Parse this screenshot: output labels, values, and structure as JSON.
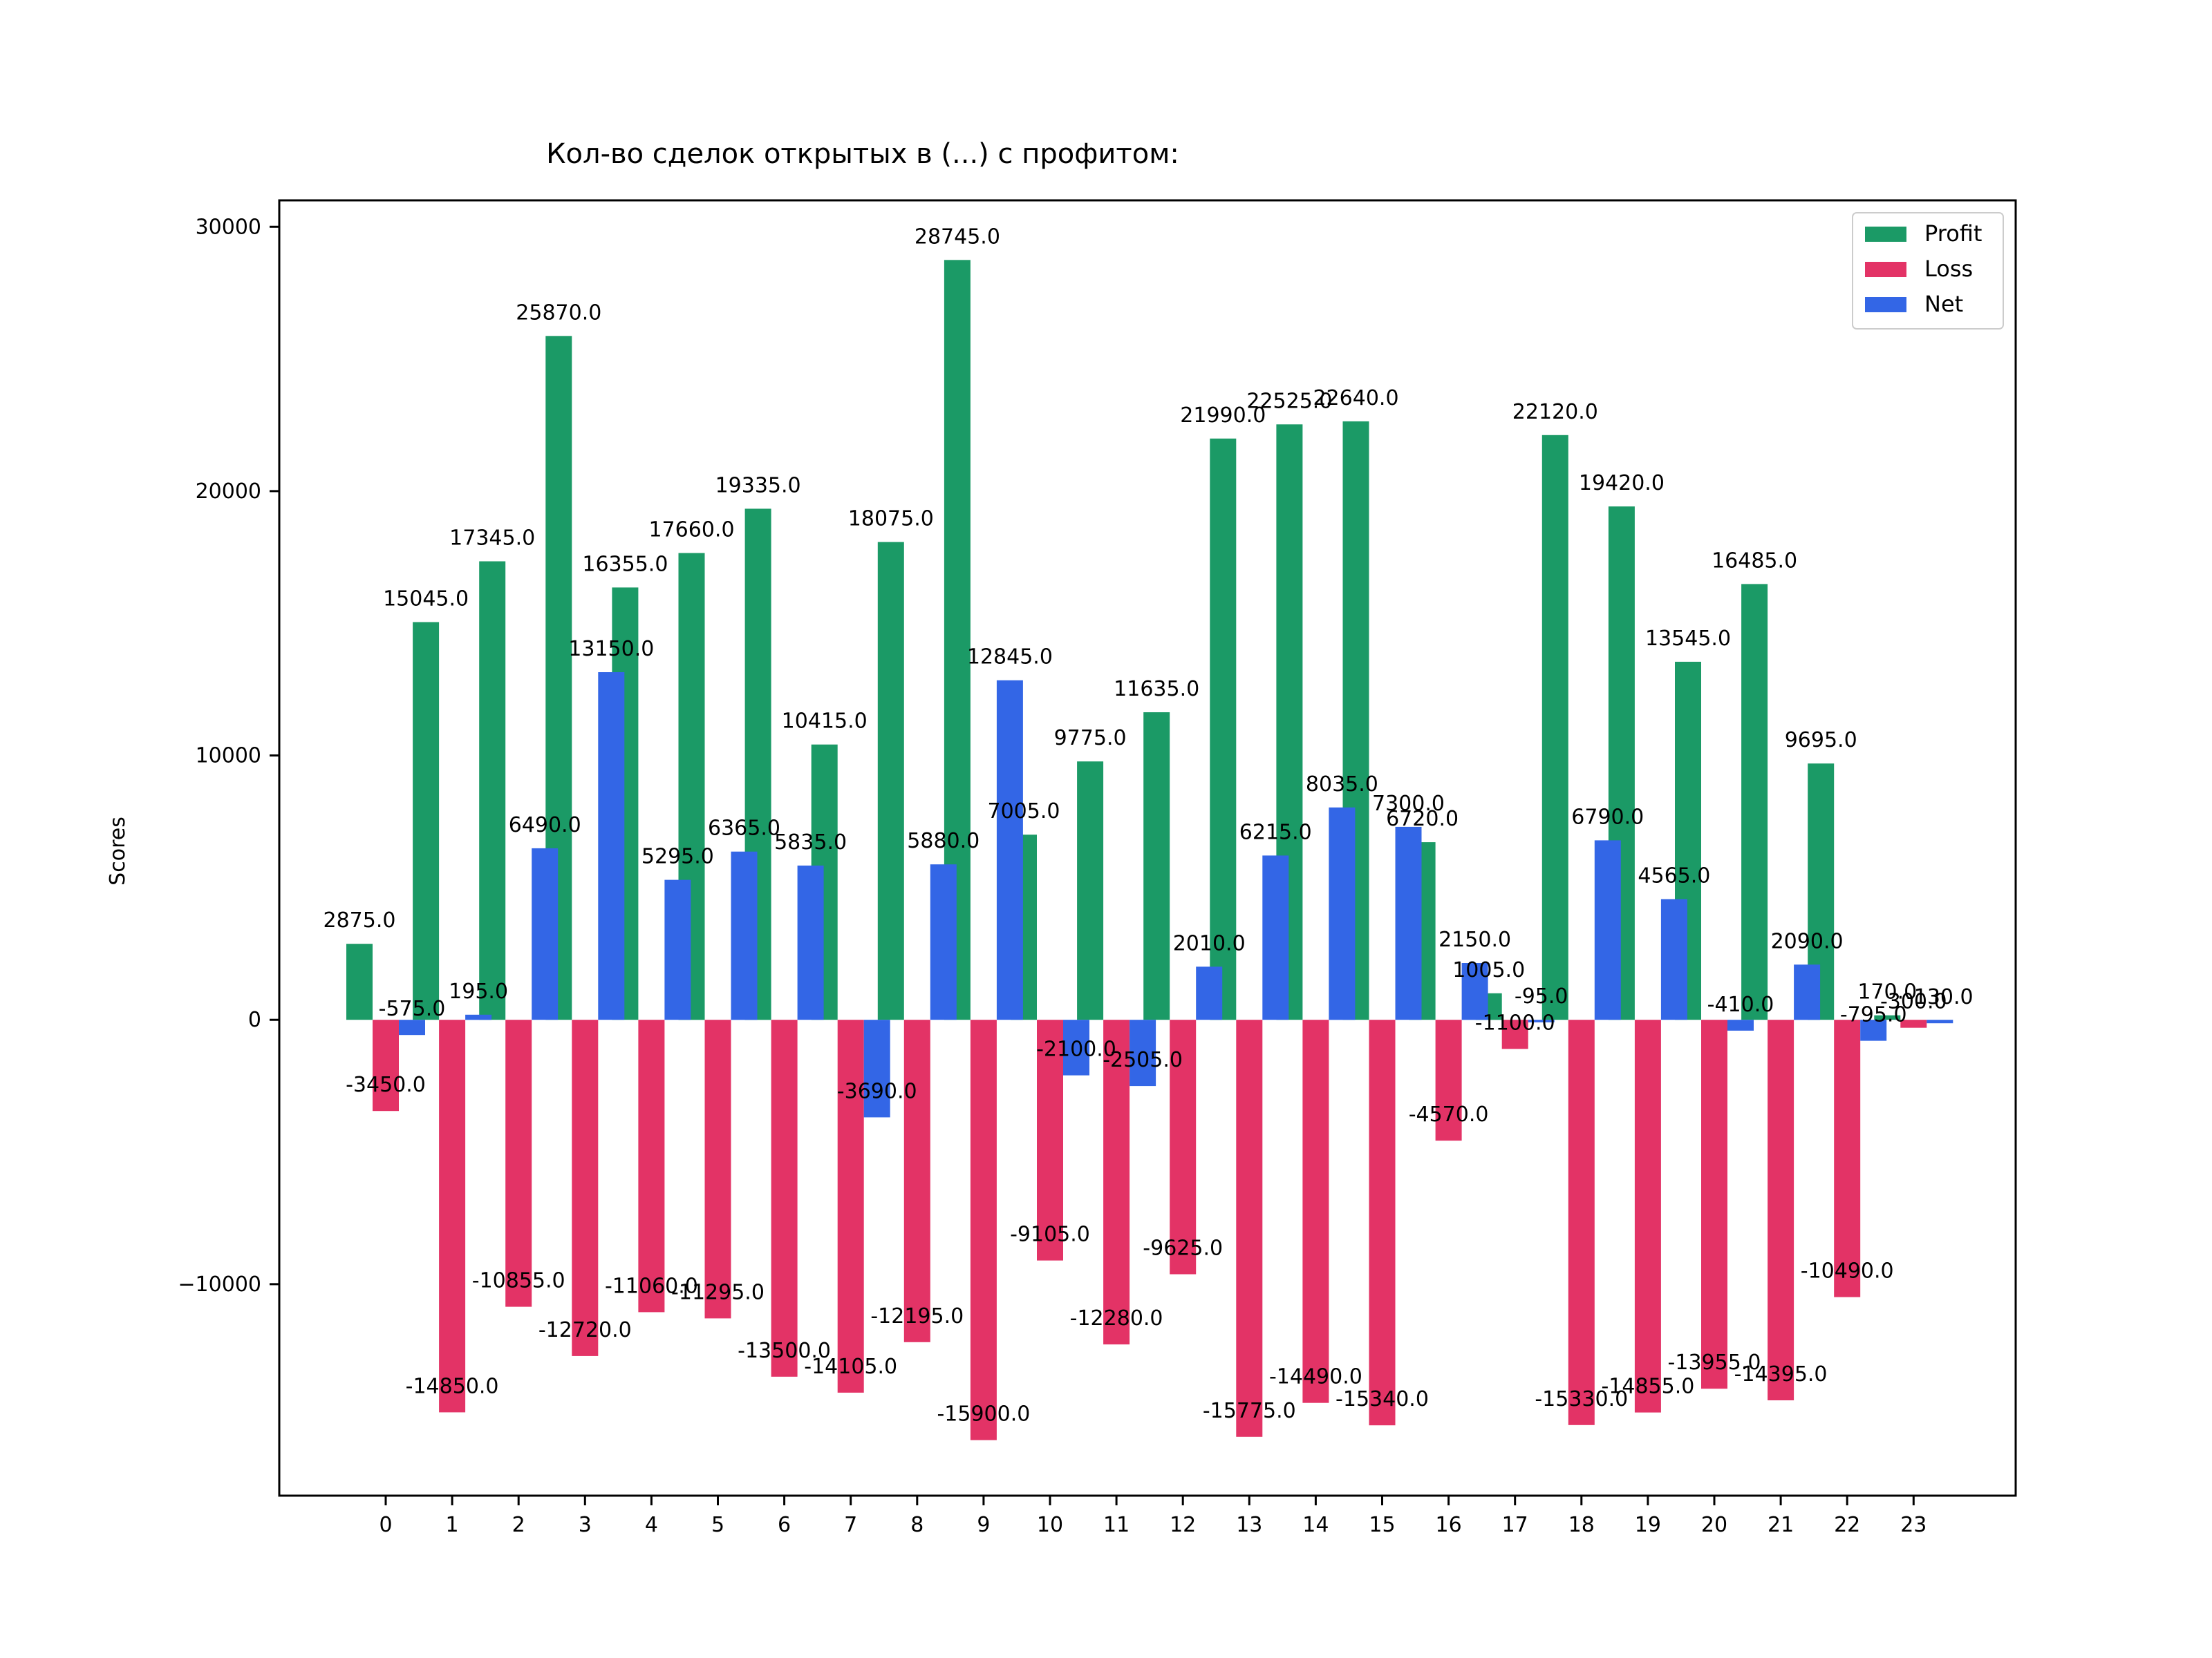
{
  "chart_data": {
    "type": "bar",
    "title": "Кол-во сделок открытых в (...) с профитом:",
    "xlabel": "",
    "ylabel": "Scores",
    "categories": [
      "0",
      "1",
      "2",
      "3",
      "4",
      "5",
      "6",
      "7",
      "8",
      "9",
      "10",
      "11",
      "12",
      "13",
      "14",
      "15",
      "16",
      "17",
      "18",
      "19",
      "20",
      "21",
      "22",
      "23"
    ],
    "ylim": [
      -18000,
      31000
    ],
    "yticks": [
      -10000,
      0,
      10000,
      20000,
      30000
    ],
    "yticks_labels": [
      "−10000",
      "0",
      "10000",
      "20000",
      "30000"
    ],
    "grid": false,
    "legend_position": "top-right",
    "series": [
      {
        "name": "Profit",
        "color": "#1b9a66",
        "values": [
          2875,
          15045,
          17345,
          25870,
          16355,
          17660,
          19335,
          10415,
          18075,
          28745,
          7005,
          9775,
          11635,
          21990,
          22525,
          22640,
          6720,
          1005,
          22120,
          19420,
          13545,
          16485,
          9695,
          170
        ],
        "labels": [
          "2875.0",
          "15045.0",
          "17345.0",
          "25870.0",
          "16355.0",
          "17660.0",
          "19335.0",
          "10415.0",
          "18075.0",
          "28745.0",
          "7005.0",
          "9775.0",
          "11635.0",
          "21990.0",
          "22525.0",
          "22640.0",
          "6720.0",
          "1005.0",
          "22120.0",
          "19420.0",
          "13545.0",
          "16485.0",
          "9695.0",
          "170.0"
        ]
      },
      {
        "name": "Loss",
        "color": "#e33366",
        "values": [
          -3450,
          -14850,
          -10855,
          -12720,
          -11060,
          -11295,
          -13500,
          -14105,
          -12195,
          -15900,
          -9105,
          -12280,
          -9625,
          -15775,
          -14490,
          -15340,
          -4570,
          -1100,
          -15330,
          -14855,
          -13955,
          -14395,
          -10490,
          -300
        ],
        "labels": [
          "-3450.0",
          "-14850.0",
          "-10855.0",
          "-12720.0",
          "-11060.0",
          "-11295.0",
          "-13500.0",
          "-14105.0",
          "-12195.0",
          "-15900.0",
          "-9105.0",
          "-12280.0",
          "-9625.0",
          "-15775.0",
          "-14490.0",
          "-15340.0",
          "-4570.0",
          "-1100.0",
          "-15330.0",
          "-14855.0",
          "-13955.0",
          "-14395.0",
          "-10490.0",
          "-300.0"
        ]
      },
      {
        "name": "Net",
        "color": "#3366e6",
        "values": [
          -575,
          195,
          6490,
          13150,
          5295,
          6365,
          5835,
          -3690,
          5880,
          12845,
          -2100,
          -2505,
          2010,
          6215,
          8035,
          7300,
          2150,
          -95,
          6790,
          4565,
          -410,
          2090,
          -795,
          -130
        ],
        "labels": [
          "-575.0",
          "195.0",
          "6490.0",
          "13150.0",
          "5295.0",
          "6365.0",
          "5835.0",
          "-3690.0",
          "5880.0",
          "12845.0",
          "-2100.0",
          "-2505.0",
          "2010.0",
          "6215.0",
          "8035.0",
          "7300.0",
          "2150.0",
          "-95.0",
          "6790.0",
          "4565.0",
          "-410.0",
          "2090.0",
          "-795.0",
          "-130.0"
        ]
      }
    ]
  }
}
